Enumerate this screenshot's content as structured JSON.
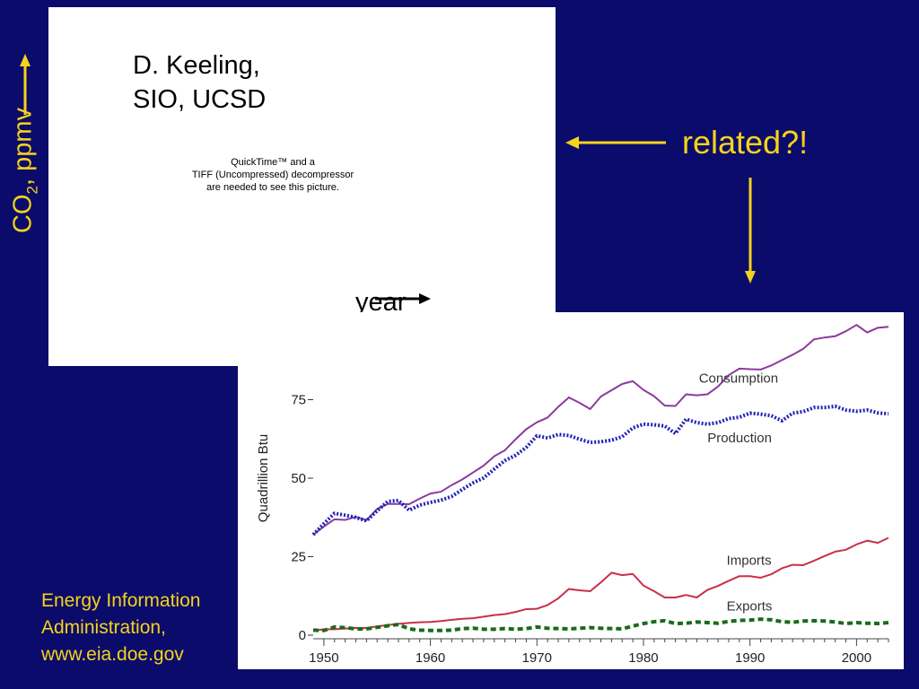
{
  "keeling_panel": {
    "credit_lines": [
      "D. Keeling,",
      "SIO, UCSD"
    ],
    "placeholder_lines": [
      "QuickTime™ and a",
      "TIFF (Uncompressed) decompressor",
      "are needed to see this picture."
    ],
    "x_axis_label": "year"
  },
  "co2_axis": {
    "text_main": "CO",
    "text_sub": "2",
    "text_rest": ", ppmv"
  },
  "related_label": "related?!",
  "eia_credit": [
    "Energy Information",
    "Administration,",
    "www.eia.doe.gov"
  ],
  "colors": {
    "background": "#0b0b6b",
    "accent_yellow": "#f5d31a",
    "consumption": "#8b3a9c",
    "production": "#2020b8",
    "imports": "#c8304a",
    "exports": "#1a6b1a"
  },
  "icons": [
    "arrow-up-icon",
    "arrow-left-icon",
    "arrow-down-icon",
    "arrow-right-icon"
  ],
  "chart_data": {
    "type": "line",
    "title": "",
    "xlabel": "",
    "ylabel": "Quadrillion Btu",
    "xlim": [
      1949,
      2003
    ],
    "ylim": [
      0,
      100
    ],
    "x_ticks": [
      1950,
      1960,
      1970,
      1980,
      1990,
      2000
    ],
    "y_ticks": [
      0,
      25,
      50,
      75
    ],
    "grid": false,
    "legend": "inline labels",
    "x": [
      1949,
      1950,
      1951,
      1952,
      1953,
      1954,
      1955,
      1956,
      1957,
      1958,
      1959,
      1960,
      1961,
      1962,
      1963,
      1964,
      1965,
      1966,
      1967,
      1968,
      1969,
      1970,
      1971,
      1972,
      1973,
      1974,
      1975,
      1976,
      1977,
      1978,
      1979,
      1980,
      1981,
      1982,
      1983,
      1984,
      1985,
      1986,
      1987,
      1988,
      1989,
      1990,
      1991,
      1992,
      1993,
      1994,
      1995,
      1996,
      1997,
      1998,
      1999,
      2000,
      2001,
      2002,
      2003
    ],
    "series": [
      {
        "name": "Consumption",
        "style": "solid",
        "values": [
          32,
          34.6,
          36.9,
          36.7,
          37.7,
          36.6,
          40.2,
          41.8,
          41.8,
          41.7,
          43.5,
          45.1,
          45.7,
          47.8,
          49.6,
          51.8,
          54.0,
          57.0,
          58.9,
          62.4,
          65.6,
          67.8,
          69.3,
          72.7,
          75.7,
          74.0,
          72.0,
          76.0,
          78.0,
          80.0,
          80.9,
          78.1,
          76.1,
          73.1,
          73.0,
          76.7,
          76.4,
          76.7,
          79.2,
          82.8,
          84.9,
          84.7,
          84.6,
          85.9,
          87.6,
          89.3,
          91.2,
          94.2,
          94.8,
          95.2,
          96.8,
          98.8,
          96.4,
          97.9,
          98.2
        ]
      },
      {
        "name": "Production",
        "style": "dotted",
        "values": [
          32,
          35.5,
          38.8,
          38.2,
          37.5,
          36.4,
          39.6,
          42.6,
          42.9,
          39.8,
          41.4,
          42.3,
          43.0,
          44.2,
          46.4,
          48.5,
          50.1,
          52.9,
          55.6,
          57.3,
          59.8,
          63.5,
          62.8,
          63.9,
          63.6,
          62.4,
          61.4,
          61.6,
          62.1,
          63.2,
          66.0,
          67.2,
          67.0,
          66.6,
          64.2,
          68.8,
          67.7,
          67.2,
          67.7,
          69.0,
          69.4,
          70.7,
          70.4,
          69.9,
          68.3,
          70.7,
          71.2,
          72.5,
          72.5,
          72.9,
          71.7,
          71.3,
          71.7,
          70.8,
          70.5
        ]
      },
      {
        "name": "Imports",
        "style": "solid",
        "values": [
          1.4,
          1.9,
          1.9,
          2.1,
          2.3,
          2.3,
          2.8,
          3.2,
          3.6,
          3.9,
          4.1,
          4.2,
          4.5,
          4.9,
          5.2,
          5.4,
          5.9,
          6.4,
          6.7,
          7.4,
          8.3,
          8.4,
          9.6,
          11.7,
          14.7,
          14.3,
          14.0,
          16.8,
          19.9,
          19.1,
          19.5,
          15.8,
          14.0,
          12.0,
          12.0,
          12.8,
          12.0,
          14.4,
          15.7,
          17.3,
          18.8,
          18.8,
          18.3,
          19.4,
          21.3,
          22.4,
          22.3,
          23.7,
          25.2,
          26.6,
          27.2,
          28.9,
          30.1,
          29.4,
          31.0
        ]
      },
      {
        "name": "Exports",
        "style": "dashed",
        "values": [
          1.6,
          1.5,
          2.6,
          2.4,
          2.0,
          2.0,
          2.5,
          3.0,
          3.4,
          2.0,
          1.6,
          1.5,
          1.5,
          1.6,
          2.1,
          2.2,
          1.9,
          1.9,
          2.1,
          1.9,
          2.1,
          2.6,
          2.2,
          2.1,
          2.0,
          2.2,
          2.4,
          2.2,
          2.1,
          2.0,
          2.9,
          3.7,
          4.3,
          4.6,
          3.7,
          3.8,
          4.2,
          4.0,
          3.8,
          4.4,
          4.7,
          4.8,
          5.1,
          4.9,
          4.3,
          4.1,
          4.5,
          4.6,
          4.5,
          4.2,
          3.7,
          4.0,
          3.8,
          3.7,
          4.0
        ]
      }
    ]
  }
}
